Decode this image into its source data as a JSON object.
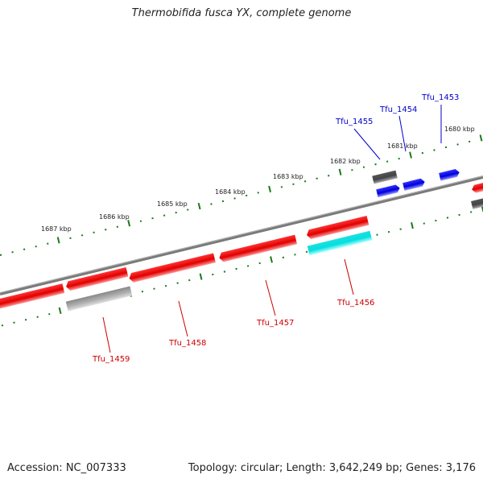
{
  "header": {
    "title": "Thermobifida fusca YX, complete genome"
  },
  "footer": {
    "accession": "Accession: NC_007333",
    "summary": "Topology: circular; Length: 3,642,249 bp; Genes: 3,176"
  },
  "map": {
    "scale_labels": [
      "1680 kbp",
      "1681 kbp",
      "1682 kbp",
      "1683 kbp",
      "1684 kbp",
      "1685 kbp",
      "1686 kbp",
      "1687 kbp"
    ],
    "forward_genes": [
      "Tfu_1453",
      "Tfu_1454",
      "Tfu_1455"
    ],
    "reverse_genes": [
      "Tfu_1456",
      "Tfu_1457",
      "Tfu_1458",
      "Tfu_1459"
    ],
    "colors": {
      "forward_cds": "#0000ee",
      "reverse_cds": "#ee0000",
      "backbone": "#777777",
      "ticks": "#1a7a1a",
      "cyan_feature": "#00e5e5",
      "gray_feature": "#999999"
    }
  }
}
